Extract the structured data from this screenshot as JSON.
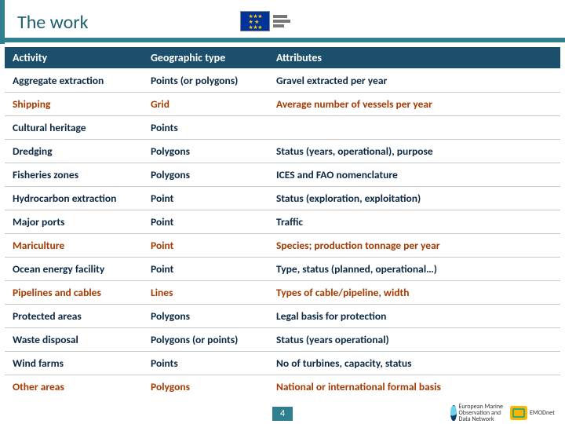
{
  "title": "The work",
  "page_number": "4",
  "colors": {
    "accent": "#2f7f8f",
    "header_bg": "#1b4f6b",
    "text_dark": "#0b2944",
    "highlight": "#a63a00",
    "border": "#c9c9c9"
  },
  "table": {
    "columns": [
      "Activity",
      "Geographic type",
      "Attributes"
    ],
    "rows": [
      {
        "cells": [
          "Aggregate extraction",
          "Points (or polygons)",
          "Gravel extracted per year"
        ],
        "highlight": false
      },
      {
        "cells": [
          "Shipping",
          "Grid",
          "Average number of vessels per year"
        ],
        "highlight": true
      },
      {
        "cells": [
          "Cultural heritage",
          "Points",
          ""
        ],
        "highlight": false
      },
      {
        "cells": [
          "Dredging",
          "Polygons",
          "Status (years, operational), purpose"
        ],
        "highlight": false
      },
      {
        "cells": [
          "Fisheries zones",
          "Polygons",
          "ICES and FAO nomenclature"
        ],
        "highlight": false
      },
      {
        "cells": [
          "Hydrocarbon extraction",
          "Point",
          "Status (exploration, exploitation)"
        ],
        "highlight": false
      },
      {
        "cells": [
          "Major ports",
          "Point",
          "Traffic"
        ],
        "highlight": false
      },
      {
        "cells": [
          "Mariculture",
          "Point",
          "Species; production tonnage per year"
        ],
        "highlight": true
      },
      {
        "cells": [
          "Ocean energy facility",
          "Point",
          "Type, status (planned, operational…)"
        ],
        "highlight": false
      },
      {
        "cells": [
          "Pipelines and cables",
          "Lines",
          "Types of cable/pipeline, width"
        ],
        "highlight": true
      },
      {
        "cells": [
          "Protected areas",
          "Polygons",
          "Legal basis for protection"
        ],
        "highlight": false
      },
      {
        "cells": [
          "Waste disposal",
          "Polygons (or points)",
          "Status (years operational)"
        ],
        "highlight": false
      },
      {
        "cells": [
          "Wind farms",
          "Points",
          "No of turbines, capacity, status"
        ],
        "highlight": false
      },
      {
        "cells": [
          "Other areas",
          "Polygons",
          "National or international formal basis"
        ],
        "highlight": true
      }
    ]
  },
  "logos": {
    "emodnet": "EMODnet",
    "marine_obs": "European Marine Observation and Data Network"
  }
}
